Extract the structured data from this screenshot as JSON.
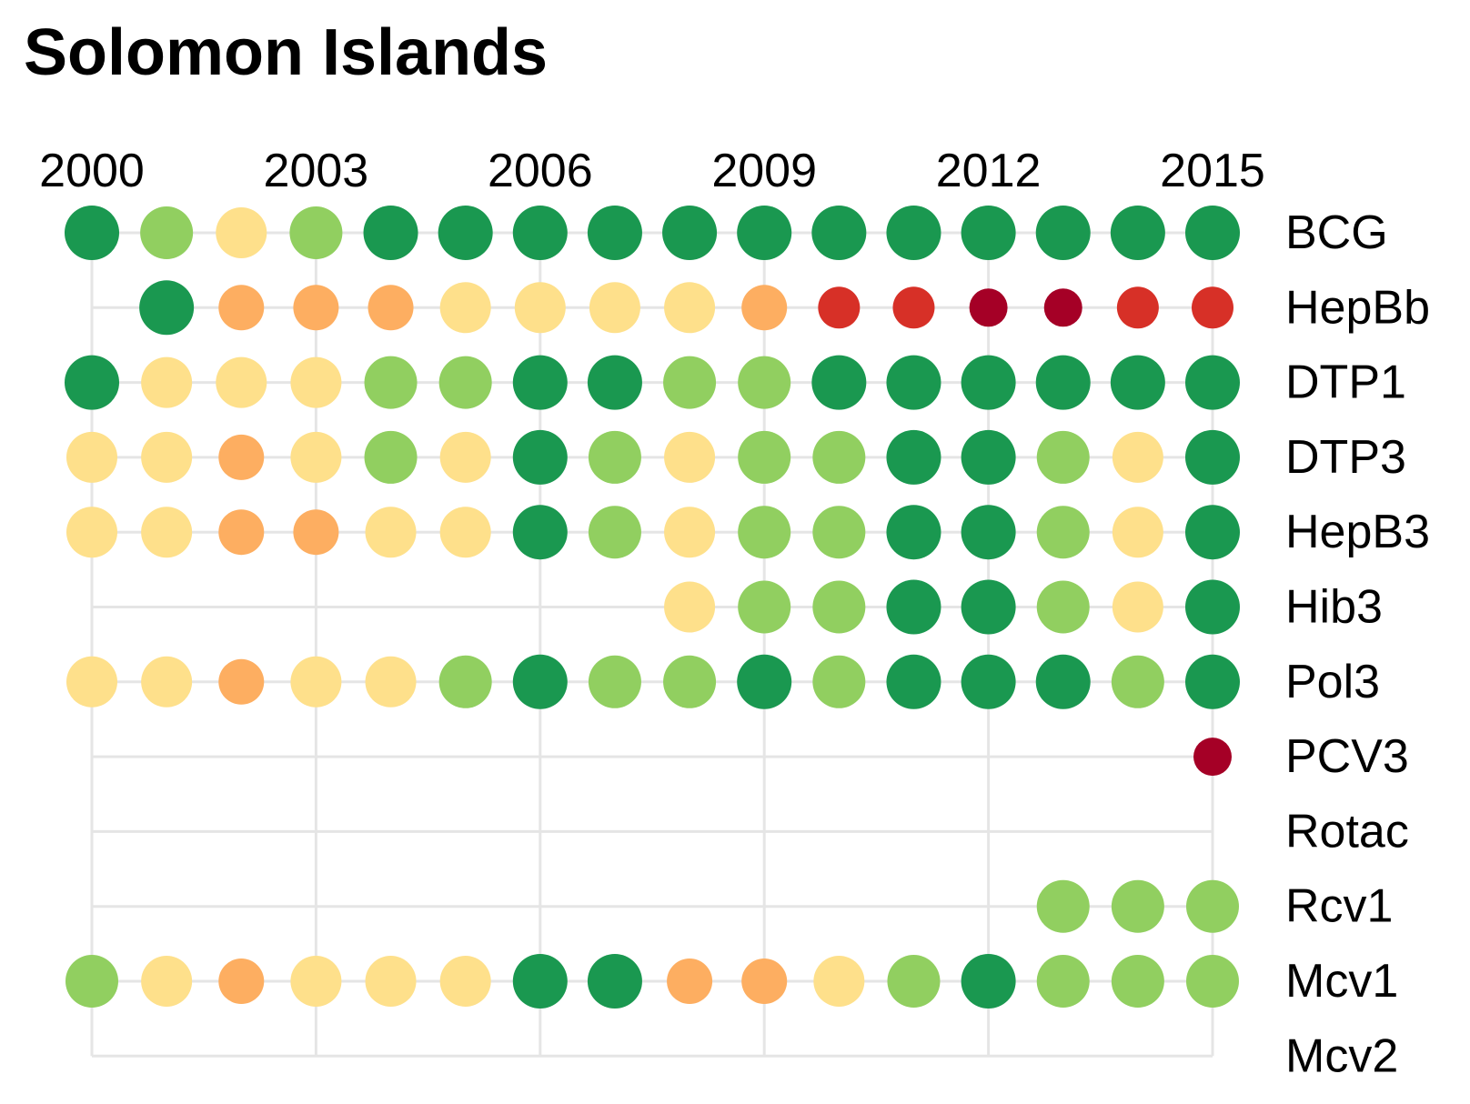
{
  "chart_data": {
    "type": "scatter",
    "title": "Solomon Islands",
    "x_range": [
      2000,
      2015
    ],
    "x_ticks": [
      2000,
      2003,
      2006,
      2009,
      2012,
      2015
    ],
    "grid": true,
    "rows": [
      "BCG",
      "HepBb",
      "DTP1",
      "DTP3",
      "HepB3",
      "Hib3",
      "Pol3",
      "PCV3",
      "Rotac",
      "Rcv1",
      "Mcv1",
      "Mcv2"
    ],
    "colors": {
      "dark_green": "#1a9850",
      "light_green": "#91cf60",
      "pale_yellow": "#fee08b",
      "orange": "#fdae61",
      "red": "#d73027",
      "dark_red": "#a50026",
      "grid": "#e5e5e5"
    },
    "points": [
      {
        "row": "BCG",
        "year": 2000,
        "level": "dark_green"
      },
      {
        "row": "BCG",
        "year": 2001,
        "level": "light_green"
      },
      {
        "row": "BCG",
        "year": 2002,
        "level": "pale_yellow"
      },
      {
        "row": "BCG",
        "year": 2003,
        "level": "light_green"
      },
      {
        "row": "BCG",
        "year": 2004,
        "level": "dark_green"
      },
      {
        "row": "BCG",
        "year": 2005,
        "level": "dark_green"
      },
      {
        "row": "BCG",
        "year": 2006,
        "level": "dark_green"
      },
      {
        "row": "BCG",
        "year": 2007,
        "level": "dark_green"
      },
      {
        "row": "BCG",
        "year": 2008,
        "level": "dark_green"
      },
      {
        "row": "BCG",
        "year": 2009,
        "level": "dark_green"
      },
      {
        "row": "BCG",
        "year": 2010,
        "level": "dark_green"
      },
      {
        "row": "BCG",
        "year": 2011,
        "level": "dark_green"
      },
      {
        "row": "BCG",
        "year": 2012,
        "level": "dark_green"
      },
      {
        "row": "BCG",
        "year": 2013,
        "level": "dark_green"
      },
      {
        "row": "BCG",
        "year": 2014,
        "level": "dark_green"
      },
      {
        "row": "BCG",
        "year": 2015,
        "level": "dark_green"
      },
      {
        "row": "HepBb",
        "year": 2001,
        "level": "dark_green"
      },
      {
        "row": "HepBb",
        "year": 2002,
        "level": "orange"
      },
      {
        "row": "HepBb",
        "year": 2003,
        "level": "orange"
      },
      {
        "row": "HepBb",
        "year": 2004,
        "level": "orange"
      },
      {
        "row": "HepBb",
        "year": 2005,
        "level": "pale_yellow"
      },
      {
        "row": "HepBb",
        "year": 2006,
        "level": "pale_yellow"
      },
      {
        "row": "HepBb",
        "year": 2007,
        "level": "pale_yellow"
      },
      {
        "row": "HepBb",
        "year": 2008,
        "level": "pale_yellow"
      },
      {
        "row": "HepBb",
        "year": 2009,
        "level": "orange"
      },
      {
        "row": "HepBb",
        "year": 2010,
        "level": "red"
      },
      {
        "row": "HepBb",
        "year": 2011,
        "level": "red"
      },
      {
        "row": "HepBb",
        "year": 2012,
        "level": "dark_red"
      },
      {
        "row": "HepBb",
        "year": 2013,
        "level": "dark_red"
      },
      {
        "row": "HepBb",
        "year": 2014,
        "level": "red"
      },
      {
        "row": "HepBb",
        "year": 2015,
        "level": "red"
      },
      {
        "row": "DTP1",
        "year": 2000,
        "level": "dark_green"
      },
      {
        "row": "DTP1",
        "year": 2001,
        "level": "pale_yellow"
      },
      {
        "row": "DTP1",
        "year": 2002,
        "level": "pale_yellow"
      },
      {
        "row": "DTP1",
        "year": 2003,
        "level": "pale_yellow"
      },
      {
        "row": "DTP1",
        "year": 2004,
        "level": "light_green"
      },
      {
        "row": "DTP1",
        "year": 2005,
        "level": "light_green"
      },
      {
        "row": "DTP1",
        "year": 2006,
        "level": "dark_green"
      },
      {
        "row": "DTP1",
        "year": 2007,
        "level": "dark_green"
      },
      {
        "row": "DTP1",
        "year": 2008,
        "level": "light_green"
      },
      {
        "row": "DTP1",
        "year": 2009,
        "level": "light_green"
      },
      {
        "row": "DTP1",
        "year": 2010,
        "level": "dark_green"
      },
      {
        "row": "DTP1",
        "year": 2011,
        "level": "dark_green"
      },
      {
        "row": "DTP1",
        "year": 2012,
        "level": "dark_green"
      },
      {
        "row": "DTP1",
        "year": 2013,
        "level": "dark_green"
      },
      {
        "row": "DTP1",
        "year": 2014,
        "level": "dark_green"
      },
      {
        "row": "DTP1",
        "year": 2015,
        "level": "dark_green"
      },
      {
        "row": "DTP3",
        "year": 2000,
        "level": "pale_yellow"
      },
      {
        "row": "DTP3",
        "year": 2001,
        "level": "pale_yellow"
      },
      {
        "row": "DTP3",
        "year": 2002,
        "level": "orange"
      },
      {
        "row": "DTP3",
        "year": 2003,
        "level": "pale_yellow"
      },
      {
        "row": "DTP3",
        "year": 2004,
        "level": "light_green"
      },
      {
        "row": "DTP3",
        "year": 2005,
        "level": "pale_yellow"
      },
      {
        "row": "DTP3",
        "year": 2006,
        "level": "dark_green"
      },
      {
        "row": "DTP3",
        "year": 2007,
        "level": "light_green"
      },
      {
        "row": "DTP3",
        "year": 2008,
        "level": "pale_yellow"
      },
      {
        "row": "DTP3",
        "year": 2009,
        "level": "light_green"
      },
      {
        "row": "DTP3",
        "year": 2010,
        "level": "light_green"
      },
      {
        "row": "DTP3",
        "year": 2011,
        "level": "dark_green"
      },
      {
        "row": "DTP3",
        "year": 2012,
        "level": "dark_green"
      },
      {
        "row": "DTP3",
        "year": 2013,
        "level": "light_green"
      },
      {
        "row": "DTP3",
        "year": 2014,
        "level": "pale_yellow"
      },
      {
        "row": "DTP3",
        "year": 2015,
        "level": "dark_green"
      },
      {
        "row": "HepB3",
        "year": 2000,
        "level": "pale_yellow"
      },
      {
        "row": "HepB3",
        "year": 2001,
        "level": "pale_yellow"
      },
      {
        "row": "HepB3",
        "year": 2002,
        "level": "orange"
      },
      {
        "row": "HepB3",
        "year": 2003,
        "level": "orange"
      },
      {
        "row": "HepB3",
        "year": 2004,
        "level": "pale_yellow"
      },
      {
        "row": "HepB3",
        "year": 2005,
        "level": "pale_yellow"
      },
      {
        "row": "HepB3",
        "year": 2006,
        "level": "dark_green"
      },
      {
        "row": "HepB3",
        "year": 2007,
        "level": "light_green"
      },
      {
        "row": "HepB3",
        "year": 2008,
        "level": "pale_yellow"
      },
      {
        "row": "HepB3",
        "year": 2009,
        "level": "light_green"
      },
      {
        "row": "HepB3",
        "year": 2010,
        "level": "light_green"
      },
      {
        "row": "HepB3",
        "year": 2011,
        "level": "dark_green"
      },
      {
        "row": "HepB3",
        "year": 2012,
        "level": "dark_green"
      },
      {
        "row": "HepB3",
        "year": 2013,
        "level": "light_green"
      },
      {
        "row": "HepB3",
        "year": 2014,
        "level": "pale_yellow"
      },
      {
        "row": "HepB3",
        "year": 2015,
        "level": "dark_green"
      },
      {
        "row": "Hib3",
        "year": 2008,
        "level": "pale_yellow"
      },
      {
        "row": "Hib3",
        "year": 2009,
        "level": "light_green"
      },
      {
        "row": "Hib3",
        "year": 2010,
        "level": "light_green"
      },
      {
        "row": "Hib3",
        "year": 2011,
        "level": "dark_green"
      },
      {
        "row": "Hib3",
        "year": 2012,
        "level": "dark_green"
      },
      {
        "row": "Hib3",
        "year": 2013,
        "level": "light_green"
      },
      {
        "row": "Hib3",
        "year": 2014,
        "level": "pale_yellow"
      },
      {
        "row": "Hib3",
        "year": 2015,
        "level": "dark_green"
      },
      {
        "row": "Pol3",
        "year": 2000,
        "level": "pale_yellow"
      },
      {
        "row": "Pol3",
        "year": 2001,
        "level": "pale_yellow"
      },
      {
        "row": "Pol3",
        "year": 2002,
        "level": "orange"
      },
      {
        "row": "Pol3",
        "year": 2003,
        "level": "pale_yellow"
      },
      {
        "row": "Pol3",
        "year": 2004,
        "level": "pale_yellow"
      },
      {
        "row": "Pol3",
        "year": 2005,
        "level": "light_green"
      },
      {
        "row": "Pol3",
        "year": 2006,
        "level": "dark_green"
      },
      {
        "row": "Pol3",
        "year": 2007,
        "level": "light_green"
      },
      {
        "row": "Pol3",
        "year": 2008,
        "level": "light_green"
      },
      {
        "row": "Pol3",
        "year": 2009,
        "level": "dark_green"
      },
      {
        "row": "Pol3",
        "year": 2010,
        "level": "light_green"
      },
      {
        "row": "Pol3",
        "year": 2011,
        "level": "dark_green"
      },
      {
        "row": "Pol3",
        "year": 2012,
        "level": "dark_green"
      },
      {
        "row": "Pol3",
        "year": 2013,
        "level": "dark_green"
      },
      {
        "row": "Pol3",
        "year": 2014,
        "level": "light_green"
      },
      {
        "row": "Pol3",
        "year": 2015,
        "level": "dark_green"
      },
      {
        "row": "PCV3",
        "year": 2015,
        "level": "dark_red"
      },
      {
        "row": "Rcv1",
        "year": 2013,
        "level": "light_green"
      },
      {
        "row": "Rcv1",
        "year": 2014,
        "level": "light_green"
      },
      {
        "row": "Rcv1",
        "year": 2015,
        "level": "light_green"
      },
      {
        "row": "Mcv1",
        "year": 2000,
        "level": "light_green"
      },
      {
        "row": "Mcv1",
        "year": 2001,
        "level": "pale_yellow"
      },
      {
        "row": "Mcv1",
        "year": 2002,
        "level": "orange"
      },
      {
        "row": "Mcv1",
        "year": 2003,
        "level": "pale_yellow"
      },
      {
        "row": "Mcv1",
        "year": 2004,
        "level": "pale_yellow"
      },
      {
        "row": "Mcv1",
        "year": 2005,
        "level": "pale_yellow"
      },
      {
        "row": "Mcv1",
        "year": 2006,
        "level": "dark_green"
      },
      {
        "row": "Mcv1",
        "year": 2007,
        "level": "dark_green"
      },
      {
        "row": "Mcv1",
        "year": 2008,
        "level": "orange"
      },
      {
        "row": "Mcv1",
        "year": 2009,
        "level": "orange"
      },
      {
        "row": "Mcv1",
        "year": 2010,
        "level": "pale_yellow"
      },
      {
        "row": "Mcv1",
        "year": 2011,
        "level": "light_green"
      },
      {
        "row": "Mcv1",
        "year": 2012,
        "level": "dark_green"
      },
      {
        "row": "Mcv1",
        "year": 2013,
        "level": "light_green"
      },
      {
        "row": "Mcv1",
        "year": 2014,
        "level": "light_green"
      },
      {
        "row": "Mcv1",
        "year": 2015,
        "level": "light_green"
      }
    ]
  }
}
